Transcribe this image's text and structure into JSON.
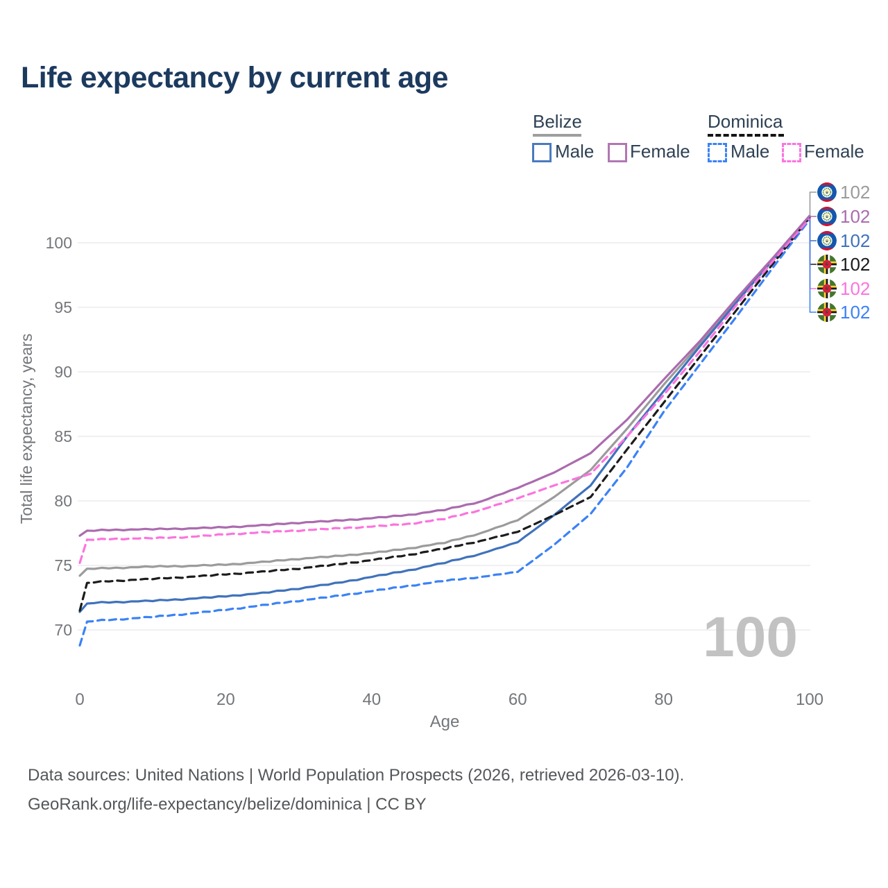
{
  "header": {
    "title": "Life expectancy by current age"
  },
  "legend": {
    "groups": [
      {
        "label": "Belize",
        "underline_style": "solid",
        "underline_color": "#9e9e9e",
        "items": [
          {
            "label": "Male",
            "color": "#4a7abf",
            "dashed": false
          },
          {
            "label": "Female",
            "color": "#b077b2",
            "dashed": false
          }
        ]
      },
      {
        "label": "Dominica",
        "underline_style": "dashed",
        "underline_color": "#141414",
        "items": [
          {
            "label": "Male",
            "color": "#3b82f6",
            "dashed": true
          },
          {
            "label": "Female",
            "color": "#fb74e1",
            "dashed": true
          }
        ]
      }
    ]
  },
  "chart_data": {
    "type": "line",
    "title": "Life expectancy by current age",
    "xlabel": "Age",
    "ylabel": "Total life expectancy, years",
    "xlim": [
      0,
      100
    ],
    "ylim": [
      68,
      103
    ],
    "xticks": [
      0,
      20,
      40,
      60,
      80,
      100
    ],
    "yticks": [
      70,
      75,
      80,
      85,
      90,
      95,
      100
    ],
    "grid": "horizontal",
    "legend_position": "top-right",
    "watermark": "100",
    "ages": [
      0,
      1,
      2,
      5,
      10,
      15,
      20,
      25,
      30,
      35,
      40,
      45,
      50,
      55,
      60,
      65,
      70,
      75,
      80,
      85,
      90,
      95,
      100
    ],
    "series": [
      {
        "id": "belize-total",
        "name": "Belize — Total",
        "color": "#9b9b9b",
        "dashed": false,
        "flag": "belize",
        "end_label": "102",
        "label_color": "#9b9b9b",
        "values": [
          74.2,
          74.7,
          74.75,
          74.8,
          74.9,
          74.95,
          75.05,
          75.25,
          75.5,
          75.7,
          75.95,
          76.3,
          76.75,
          77.5,
          78.5,
          80.3,
          82.4,
          85.6,
          89.0,
          92.2,
          95.5,
          98.75,
          102.05
        ]
      },
      {
        "id": "belize-female",
        "name": "Belize — Female",
        "color": "#ab6bae",
        "dashed": false,
        "flag": "belize",
        "end_label": "102",
        "label_color": "#ab6bae",
        "values": [
          77.3,
          77.65,
          77.7,
          77.75,
          77.8,
          77.85,
          77.95,
          78.1,
          78.3,
          78.45,
          78.65,
          78.9,
          79.3,
          79.95,
          81.0,
          82.2,
          83.7,
          86.3,
          89.4,
          92.4,
          95.7,
          98.85,
          102.1
        ]
      },
      {
        "id": "belize-male",
        "name": "Belize — Male",
        "color": "#3f72bb",
        "dashed": false,
        "flag": "belize",
        "end_label": "102",
        "label_color": "#3f72bb",
        "values": [
          71.4,
          72.0,
          72.1,
          72.15,
          72.25,
          72.4,
          72.6,
          72.85,
          73.2,
          73.6,
          74.1,
          74.6,
          75.2,
          75.9,
          76.8,
          78.9,
          81.2,
          85.0,
          88.5,
          92.0,
          95.4,
          98.7,
          102.0
        ]
      },
      {
        "id": "dominica-total",
        "name": "Dominica — Total",
        "color": "#1c1c1c",
        "dashed": true,
        "flag": "dominica",
        "end_label": "102",
        "label_color": "#1a1a1a",
        "values": [
          71.5,
          73.6,
          73.7,
          73.8,
          73.95,
          74.1,
          74.3,
          74.5,
          74.75,
          75.05,
          75.4,
          75.8,
          76.3,
          76.9,
          77.6,
          78.9,
          80.3,
          84.0,
          87.6,
          91.2,
          94.8,
          98.4,
          101.95
        ]
      },
      {
        "id": "dominica-female",
        "name": "Dominica — Female",
        "color": "#fb74de",
        "dashed": true,
        "flag": "dominica",
        "end_label": "102",
        "label_color": "#fb74de",
        "values": [
          75.2,
          76.95,
          77.0,
          77.05,
          77.1,
          77.2,
          77.4,
          77.55,
          77.7,
          77.85,
          78.0,
          78.2,
          78.6,
          79.3,
          80.2,
          81.2,
          82.1,
          85.0,
          88.2,
          91.6,
          95.2,
          98.6,
          101.9
        ]
      },
      {
        "id": "dominica-male",
        "name": "Dominica — Male",
        "color": "#3b82f6",
        "dashed": true,
        "flag": "dominica",
        "end_label": "102",
        "label_color": "#3b82f6",
        "values": [
          68.8,
          70.6,
          70.7,
          70.8,
          71.0,
          71.25,
          71.55,
          71.9,
          72.25,
          72.6,
          73.0,
          73.4,
          73.8,
          74.1,
          74.5,
          76.6,
          79.0,
          82.6,
          86.9,
          90.6,
          94.3,
          98.1,
          101.8
        ]
      }
    ]
  },
  "footer": {
    "line1": "Data sources: United Nations | World Population Prospects (2026, retrieved 2026-03-10).",
    "line2": "GeoRank.org/life-expectancy/belize/dominica | CC BY"
  }
}
